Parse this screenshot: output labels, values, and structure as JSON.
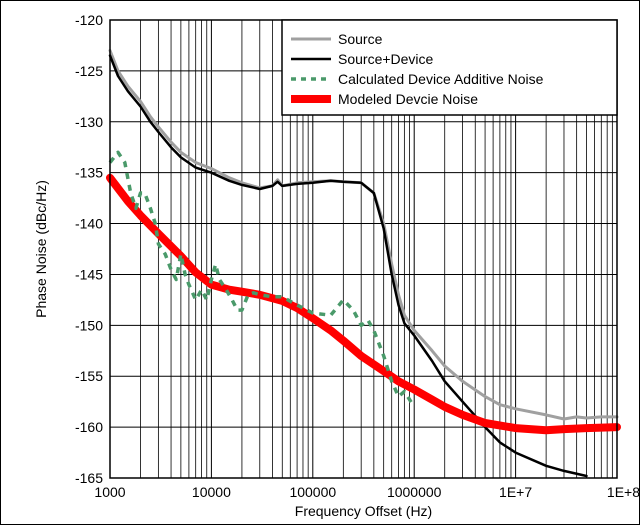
{
  "chart_data": {
    "type": "line",
    "xlabel": "Frequency Offset (Hz)",
    "ylabel": "Phase Noise (dBc/Hz)",
    "x_scale": "log",
    "xlim": [
      1000,
      100000000
    ],
    "ylim": [
      -165,
      -120
    ],
    "grid": true,
    "legend_position": "top-right",
    "x_ticks": [
      1000,
      10000,
      100000,
      1000000,
      10000000,
      100000000
    ],
    "x_tick_labels": [
      "1000",
      "10000",
      "100000",
      "1000000",
      "1E+7",
      "1E+8"
    ],
    "y_ticks": [
      -120,
      -125,
      -130,
      -135,
      -140,
      -145,
      -150,
      -155,
      -160,
      -165
    ],
    "y_tick_labels": [
      "-120",
      "-125",
      "-130",
      "-135",
      "-140",
      "-145",
      "-150",
      "-155",
      "-160",
      "-165"
    ],
    "series": [
      {
        "name": "Source",
        "color": "#a0a0a0",
        "style": "solid",
        "x": [
          1000,
          1200,
          1500,
          2000,
          2500,
          3000,
          4000,
          5000,
          7000,
          10000,
          15000,
          20000,
          30000,
          40000,
          45000,
          50000,
          70000,
          100000,
          150000,
          200000,
          300000,
          400000,
          500000,
          600000,
          700000,
          800000,
          1000000,
          1500000,
          2000000,
          3000000,
          5000000,
          7000000,
          10000000,
          20000000,
          30000000,
          40000000,
          50000000,
          70000000,
          100000000
        ],
        "y": [
          -123,
          -125,
          -126.5,
          -128,
          -129.5,
          -130.5,
          -132,
          -133,
          -134,
          -134.6,
          -135.5,
          -136,
          -136.5,
          -136.3,
          -135.7,
          -136.3,
          -136,
          -135.9,
          -135.8,
          -135.9,
          -136,
          -137,
          -140,
          -144,
          -147,
          -149,
          -150.5,
          -152.5,
          -154,
          -155.5,
          -157,
          -157.8,
          -158.2,
          -158.8,
          -159.2,
          -159,
          -159.1,
          -159,
          -159
        ]
      },
      {
        "name": "Source+Device",
        "color": "#000000",
        "style": "solid",
        "x": [
          1000,
          1200,
          1500,
          2000,
          2500,
          3000,
          4000,
          5000,
          7000,
          10000,
          15000,
          20000,
          30000,
          40000,
          45000,
          50000,
          70000,
          100000,
          150000,
          200000,
          300000,
          400000,
          500000,
          600000,
          700000,
          800000,
          1000000,
          1500000,
          2000000,
          3000000,
          5000000,
          7000000,
          10000000,
          20000000,
          30000000,
          50000000
        ],
        "y": [
          -123.5,
          -125.5,
          -127,
          -128.5,
          -130,
          -131,
          -132.5,
          -133.5,
          -134.5,
          -135,
          -135.8,
          -136.2,
          -136.6,
          -136.3,
          -135.9,
          -136.3,
          -136.1,
          -136,
          -135.8,
          -135.9,
          -136,
          -137,
          -140.5,
          -145,
          -148,
          -149.8,
          -151,
          -153.5,
          -155.5,
          -157.5,
          -160,
          -161.5,
          -162.5,
          -163.8,
          -164.3,
          -164.8
        ]
      },
      {
        "name": "Calculated Device Additive Noise",
        "color": "#4a9a6a",
        "style": "dashed",
        "x": [
          1000,
          1200,
          1400,
          1600,
          1800,
          2000,
          2200,
          2500,
          2800,
          3000,
          3500,
          4000,
          4500,
          5000,
          5500,
          6000,
          7000,
          8000,
          9000,
          10000,
          11000,
          12000,
          14000,
          16000,
          18000,
          20000,
          23000,
          26000,
          30000,
          40000,
          50000,
          70000,
          100000,
          150000,
          200000,
          250000,
          300000,
          350000,
          400000,
          500000,
          600000,
          700000,
          800000,
          1000000
        ],
        "y": [
          -134,
          -133,
          -134,
          -137,
          -138.5,
          -137,
          -137,
          -138.5,
          -140,
          -142,
          -143,
          -144.5,
          -145.5,
          -143,
          -145,
          -146,
          -147.5,
          -146.5,
          -147.5,
          -145.5,
          -144,
          -145.5,
          -146.5,
          -147.5,
          -148.5,
          -148.5,
          -147,
          -146.8,
          -147,
          -147.2,
          -147.2,
          -148,
          -148.8,
          -149,
          -147.5,
          -148.5,
          -150,
          -149.5,
          -150.5,
          -153,
          -155.5,
          -157,
          -156.5,
          -158
        ]
      },
      {
        "name": "Modeled Devcie Noise",
        "color": "#ff0000",
        "style": "solid",
        "x": [
          1000,
          1500,
          2000,
          3000,
          5000,
          7000,
          10000,
          15000,
          20000,
          30000,
          50000,
          70000,
          100000,
          150000,
          200000,
          300000,
          500000,
          700000,
          1000000,
          1500000,
          2000000,
          3000000,
          5000000,
          10000000,
          20000000,
          30000000,
          50000000,
          100000000
        ],
        "y": [
          -135.5,
          -137.8,
          -139.2,
          -141,
          -143.2,
          -144.8,
          -146,
          -146.5,
          -146.7,
          -147,
          -147.6,
          -148.3,
          -149.3,
          -150.5,
          -151.5,
          -153,
          -154.5,
          -155.5,
          -156.3,
          -157.3,
          -158,
          -158.8,
          -159.6,
          -160.1,
          -160.3,
          -160.2,
          -160.1,
          -160
        ]
      }
    ]
  }
}
